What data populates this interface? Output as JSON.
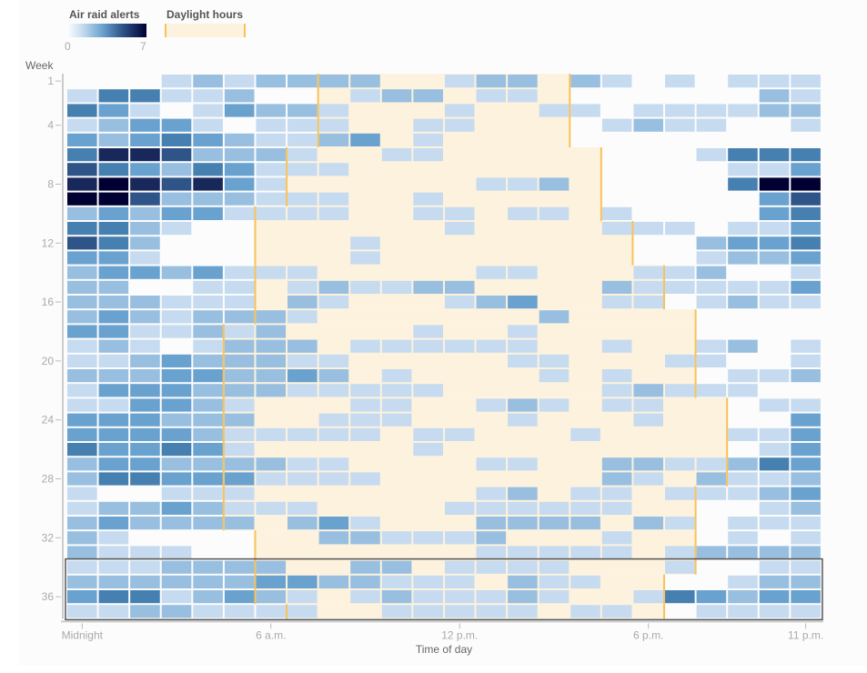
{
  "legend": {
    "alerts_title": "Air raid alerts",
    "alerts_min": "0",
    "alerts_max": "7",
    "daylight_title": "Daylight hours"
  },
  "colors": {
    "levels": [
      "#ffffff",
      "#c6dbef",
      "#98bfe0",
      "#6aa2cf",
      "#4680b0",
      "#2f5488",
      "#19285a",
      "#000033"
    ],
    "daylight_fill": "#fdf2de",
    "daylight_edge": "#f7c25a",
    "highlight_box": "#555555"
  },
  "chart_data": {
    "type": "heatmap",
    "title": "",
    "xlabel": "Time of day",
    "ylabel": "Week",
    "x_categories": [
      "0",
      "1",
      "2",
      "3",
      "4",
      "5",
      "6",
      "7",
      "8",
      "9",
      "10",
      "11",
      "12",
      "13",
      "14",
      "15",
      "16",
      "17",
      "18",
      "19",
      "20",
      "21",
      "22",
      "23"
    ],
    "x_ticks": [
      {
        "hour": 0,
        "label": "Midnight"
      },
      {
        "hour": 6,
        "label": "6 a.m."
      },
      {
        "hour": 12,
        "label": "12 p.m."
      },
      {
        "hour": 18,
        "label": "6 p.m."
      },
      {
        "hour": 23,
        "label": "11 p.m."
      }
    ],
    "y_ticks": [
      {
        "week": 1,
        "label": "1"
      },
      {
        "week": 4,
        "label": "4"
      },
      {
        "week": 8,
        "label": "8"
      },
      {
        "week": 12,
        "label": "12"
      },
      {
        "week": 16,
        "label": "16"
      },
      {
        "week": 20,
        "label": "20"
      },
      {
        "week": 24,
        "label": "24"
      },
      {
        "week": 28,
        "label": "28"
      },
      {
        "week": 32,
        "label": "32"
      },
      {
        "week": 36,
        "label": "36"
      }
    ],
    "value_range": [
      0,
      7
    ],
    "weeks": 37,
    "values": [
      [
        0,
        0,
        0,
        1,
        2,
        1,
        2,
        2,
        2,
        2,
        0,
        0,
        1,
        2,
        2,
        0,
        2,
        1,
        0,
        1,
        0,
        1,
        1,
        1
      ],
      [
        1,
        4,
        4,
        1,
        1,
        2,
        0,
        0,
        0,
        1,
        2,
        2,
        0,
        1,
        1,
        0,
        0,
        0,
        0,
        0,
        0,
        0,
        2,
        1
      ],
      [
        4,
        3,
        1,
        0,
        1,
        3,
        2,
        2,
        1,
        0,
        0,
        0,
        1,
        0,
        0,
        1,
        1,
        0,
        1,
        1,
        1,
        1,
        2,
        2
      ],
      [
        1,
        2,
        3,
        3,
        1,
        0,
        1,
        1,
        1,
        0,
        0,
        1,
        1,
        0,
        0,
        0,
        0,
        1,
        2,
        1,
        1,
        0,
        0,
        1
      ],
      [
        3,
        2,
        3,
        4,
        3,
        2,
        1,
        1,
        2,
        3,
        0,
        1,
        0,
        0,
        0,
        0,
        0,
        0,
        0,
        0,
        0,
        0,
        0,
        0
      ],
      [
        4,
        6,
        6,
        5,
        2,
        2,
        2,
        1,
        0,
        0,
        1,
        1,
        0,
        0,
        0,
        0,
        0,
        0,
        0,
        0,
        1,
        4,
        4,
        4
      ],
      [
        5,
        4,
        3,
        2,
        4,
        3,
        1,
        1,
        1,
        0,
        0,
        0,
        0,
        0,
        0,
        0,
        0,
        0,
        0,
        0,
        0,
        1,
        1,
        3
      ],
      [
        6,
        7,
        6,
        5,
        6,
        3,
        1,
        0,
        0,
        0,
        0,
        0,
        0,
        1,
        1,
        2,
        0,
        0,
        0,
        0,
        0,
        4,
        7,
        7
      ],
      [
        7,
        7,
        5,
        2,
        2,
        2,
        1,
        1,
        1,
        0,
        0,
        1,
        0,
        0,
        0,
        0,
        0,
        0,
        0,
        0,
        0,
        0,
        3,
        5
      ],
      [
        2,
        3,
        2,
        3,
        3,
        1,
        1,
        1,
        1,
        0,
        0,
        1,
        1,
        0,
        1,
        1,
        0,
        1,
        0,
        0,
        0,
        0,
        3,
        4
      ],
      [
        4,
        4,
        2,
        1,
        0,
        0,
        0,
        0,
        0,
        0,
        0,
        0,
        1,
        0,
        0,
        0,
        0,
        1,
        1,
        1,
        0,
        1,
        1,
        3
      ],
      [
        5,
        4,
        2,
        0,
        0,
        0,
        0,
        0,
        0,
        1,
        0,
        0,
        0,
        0,
        0,
        0,
        0,
        0,
        0,
        0,
        2,
        3,
        3,
        4
      ],
      [
        3,
        3,
        1,
        0,
        0,
        0,
        0,
        0,
        0,
        1,
        0,
        0,
        0,
        0,
        0,
        0,
        0,
        0,
        0,
        0,
        1,
        2,
        2,
        3
      ],
      [
        2,
        3,
        3,
        2,
        3,
        1,
        1,
        1,
        0,
        0,
        0,
        0,
        0,
        1,
        1,
        0,
        0,
        0,
        1,
        1,
        2,
        0,
        0,
        1
      ],
      [
        2,
        2,
        0,
        0,
        1,
        1,
        0,
        1,
        2,
        1,
        1,
        2,
        2,
        0,
        0,
        0,
        0,
        2,
        1,
        1,
        1,
        1,
        1,
        3
      ],
      [
        2,
        2,
        2,
        1,
        1,
        1,
        0,
        2,
        1,
        0,
        0,
        0,
        1,
        2,
        3,
        0,
        0,
        1,
        1,
        0,
        1,
        2,
        1,
        1
      ],
      [
        2,
        3,
        2,
        1,
        2,
        2,
        2,
        1,
        0,
        0,
        0,
        0,
        0,
        0,
        0,
        2,
        0,
        0,
        0,
        0,
        0,
        0,
        0,
        0
      ],
      [
        3,
        3,
        1,
        1,
        2,
        1,
        2,
        0,
        0,
        0,
        0,
        1,
        0,
        0,
        1,
        0,
        0,
        0,
        0,
        0,
        0,
        0,
        0,
        0
      ],
      [
        1,
        2,
        1,
        0,
        1,
        2,
        2,
        2,
        0,
        1,
        1,
        1,
        1,
        1,
        1,
        0,
        0,
        1,
        0,
        0,
        1,
        2,
        0,
        1
      ],
      [
        1,
        1,
        2,
        3,
        2,
        2,
        2,
        1,
        1,
        0,
        0,
        0,
        0,
        0,
        1,
        1,
        0,
        0,
        0,
        1,
        1,
        0,
        0,
        1
      ],
      [
        2,
        2,
        2,
        3,
        3,
        2,
        2,
        3,
        2,
        0,
        1,
        0,
        0,
        0,
        0,
        1,
        0,
        1,
        0,
        0,
        0,
        1,
        1,
        2
      ],
      [
        1,
        3,
        3,
        3,
        2,
        2,
        2,
        1,
        1,
        1,
        1,
        1,
        0,
        0,
        0,
        0,
        0,
        1,
        2,
        1,
        1,
        1,
        0,
        0
      ],
      [
        1,
        1,
        3,
        3,
        2,
        1,
        0,
        0,
        0,
        1,
        1,
        0,
        0,
        1,
        2,
        1,
        0,
        1,
        1,
        0,
        0,
        0,
        1,
        1
      ],
      [
        3,
        3,
        3,
        2,
        2,
        2,
        0,
        0,
        1,
        1,
        1,
        0,
        0,
        0,
        1,
        0,
        0,
        0,
        1,
        0,
        0,
        0,
        0,
        3
      ],
      [
        3,
        3,
        3,
        3,
        2,
        1,
        1,
        1,
        1,
        1,
        0,
        1,
        1,
        0,
        0,
        0,
        1,
        0,
        0,
        0,
        0,
        1,
        1,
        3
      ],
      [
        4,
        3,
        3,
        4,
        3,
        1,
        0,
        0,
        0,
        0,
        0,
        1,
        0,
        0,
        0,
        0,
        0,
        0,
        0,
        0,
        0,
        0,
        1,
        3
      ],
      [
        2,
        3,
        3,
        2,
        2,
        2,
        2,
        1,
        1,
        0,
        0,
        0,
        0,
        1,
        1,
        0,
        0,
        2,
        2,
        1,
        1,
        2,
        4,
        3
      ],
      [
        2,
        4,
        4,
        3,
        3,
        3,
        1,
        1,
        1,
        1,
        0,
        0,
        0,
        0,
        0,
        0,
        0,
        2,
        1,
        0,
        2,
        1,
        1,
        2
      ],
      [
        1,
        0,
        0,
        1,
        1,
        1,
        0,
        0,
        0,
        0,
        0,
        0,
        0,
        1,
        2,
        0,
        1,
        1,
        0,
        1,
        1,
        1,
        2,
        3
      ],
      [
        1,
        2,
        2,
        3,
        2,
        1,
        1,
        1,
        0,
        0,
        0,
        0,
        1,
        1,
        1,
        1,
        1,
        1,
        0,
        0,
        0,
        0,
        1,
        2
      ],
      [
        2,
        3,
        2,
        2,
        2,
        2,
        0,
        2,
        3,
        1,
        0,
        0,
        0,
        2,
        2,
        2,
        2,
        0,
        2,
        1,
        0,
        1,
        1,
        1
      ],
      [
        2,
        1,
        0,
        0,
        0,
        0,
        0,
        0,
        2,
        2,
        1,
        1,
        1,
        2,
        0,
        0,
        0,
        1,
        0,
        0,
        0,
        1,
        0,
        1
      ],
      [
        2,
        1,
        1,
        1,
        0,
        0,
        0,
        0,
        0,
        0,
        0,
        0,
        0,
        1,
        1,
        1,
        1,
        1,
        0,
        1,
        2,
        2,
        2,
        2
      ],
      [
        1,
        1,
        1,
        2,
        2,
        2,
        2,
        0,
        0,
        2,
        2,
        0,
        1,
        1,
        1,
        1,
        0,
        0,
        0,
        1,
        0,
        0,
        1,
        1
      ],
      [
        2,
        2,
        2,
        2,
        2,
        2,
        3,
        3,
        2,
        2,
        1,
        1,
        1,
        0,
        2,
        1,
        1,
        0,
        0,
        0,
        0,
        1,
        2,
        2
      ],
      [
        3,
        4,
        4,
        1,
        2,
        3,
        2,
        1,
        0,
        1,
        2,
        1,
        1,
        1,
        2,
        1,
        0,
        0,
        1,
        4,
        3,
        2,
        3,
        3
      ],
      [
        1,
        1,
        2,
        2,
        1,
        1,
        1,
        1,
        0,
        0,
        1,
        1,
        1,
        1,
        1,
        0,
        1,
        1,
        0,
        0,
        1,
        1,
        1,
        1
      ]
    ],
    "daylight": [
      {
        "weeks": [
          1,
          5
        ],
        "start_hour": 8,
        "end_hour": 16
      },
      {
        "weeks": [
          6,
          9
        ],
        "start_hour": 7,
        "end_hour": 17
      },
      {
        "weeks": [
          10,
          10
        ],
        "start_hour": 6,
        "end_hour": 17
      },
      {
        "weeks": [
          11,
          13
        ],
        "start_hour": 6,
        "end_hour": 18
      },
      {
        "weeks": [
          14,
          16
        ],
        "start_hour": 6,
        "end_hour": 19
      },
      {
        "weeks": [
          17,
          17
        ],
        "start_hour": 6,
        "end_hour": 20
      },
      {
        "weeks": [
          18,
          22
        ],
        "start_hour": 5,
        "end_hour": 20
      },
      {
        "weeks": [
          23,
          28
        ],
        "start_hour": 5,
        "end_hour": 21
      },
      {
        "weeks": [
          29,
          31
        ],
        "start_hour": 5,
        "end_hour": 20
      },
      {
        "weeks": [
          32,
          34
        ],
        "start_hour": 6,
        "end_hour": 20
      },
      {
        "weeks": [
          35,
          36
        ],
        "start_hour": 6,
        "end_hour": 19
      },
      {
        "weeks": [
          37,
          37
        ],
        "start_hour": 7,
        "end_hour": 19
      }
    ],
    "highlighted_weeks": [
      34,
      37
    ],
    "legend": [
      "Air raid alerts",
      "Daylight hours"
    ],
    "legend_position": "top-left",
    "grid": false
  }
}
